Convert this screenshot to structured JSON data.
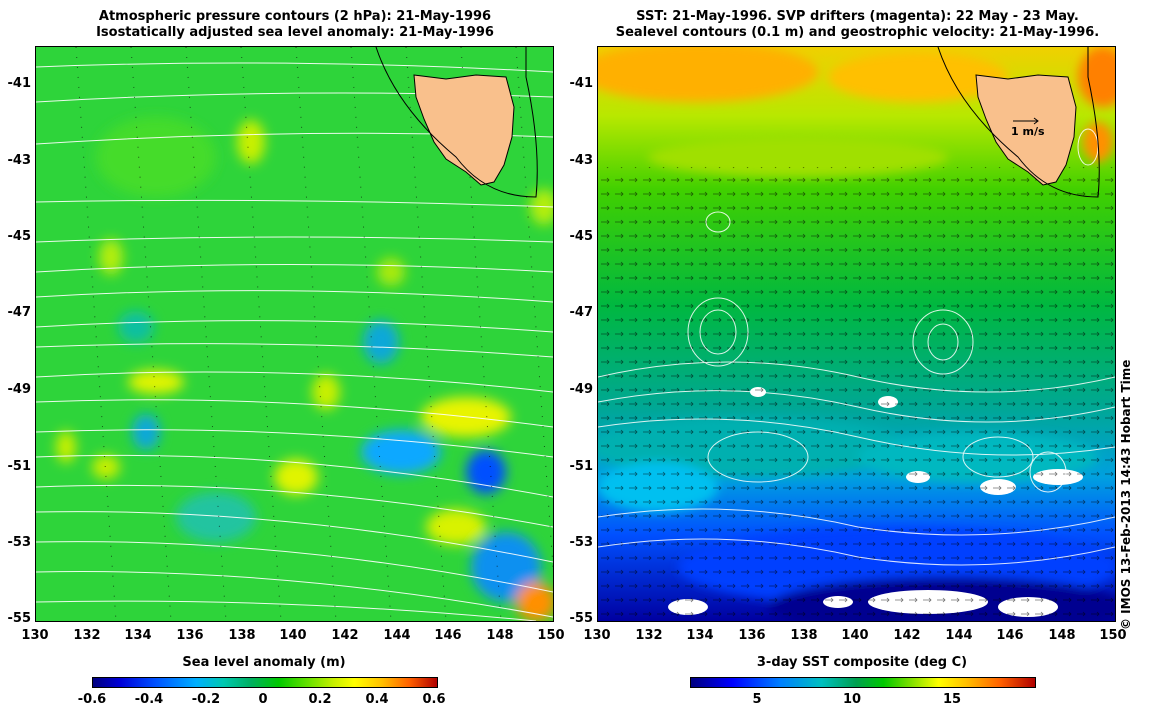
{
  "left_panel": {
    "title_line1": "Atmospheric pressure contours (2 hPa): 21-May-1996",
    "title_line2": "Isostatically adjusted sea level anomaly: 21-May-1996",
    "colorbar_title": "Sea level anomaly (m)",
    "colorbar_ticks": [
      "-0.6",
      "-0.4",
      "-0.2",
      "0",
      "0.2",
      "0.4",
      "0.6"
    ]
  },
  "right_panel": {
    "title_line1": "SST: 21-May-1996. SVP drifters (magenta): 22 May - 23 May.",
    "title_line2": "Sealevel contours (0.1 m) and geostrophic velocity: 21-May-1996.",
    "colorbar_title": "3-day SST composite (deg C)",
    "colorbar_ticks": [
      "5",
      "10",
      "15"
    ],
    "velocity_scale_label": "1 m/s"
  },
  "axes": {
    "x_ticks": [
      "130",
      "132",
      "134",
      "136",
      "138",
      "140",
      "142",
      "144",
      "146",
      "148",
      "150"
    ],
    "y_ticks": [
      "-41",
      "-43",
      "-45",
      "-47",
      "-49",
      "-51",
      "-53",
      "-55"
    ]
  },
  "credit": "© IMOS 13-Feb-2013 14:43 Hobart Time",
  "colors": {
    "land": "#f9c08c",
    "left_background": "#2ed43a",
    "coast": "#000000"
  }
}
